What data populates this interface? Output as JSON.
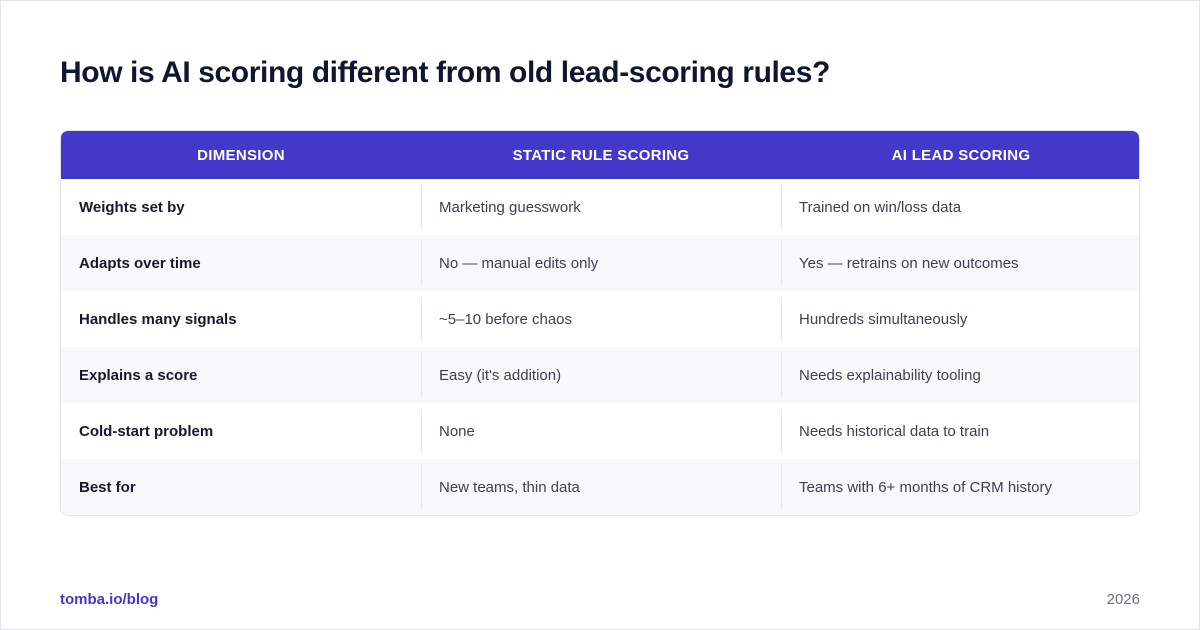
{
  "title": "How is AI scoring different from old lead-scoring rules?",
  "table": {
    "headers": [
      "DIMENSION",
      "STATIC RULE SCORING",
      "AI LEAD SCORING"
    ],
    "rows": [
      [
        "Weights set by",
        "Marketing guesswork",
        "Trained on win/loss data"
      ],
      [
        "Adapts over time",
        "No — manual edits only",
        "Yes — retrains on new outcomes"
      ],
      [
        "Handles many signals",
        "~5–10 before chaos",
        "Hundreds simultaneously"
      ],
      [
        "Explains a score",
        "Easy (it's addition)",
        "Needs explainability tooling"
      ],
      [
        "Cold-start problem",
        "None",
        "Needs historical data to train"
      ],
      [
        "Best for",
        "New teams, thin data",
        "Teams with 6+ months of CRM history"
      ]
    ]
  },
  "footer": {
    "link": "tomba.io/blog",
    "year": "2026"
  },
  "colors": {
    "accent": "#4338ca",
    "title": "#0f1730",
    "row_alt": "#f7f8fa"
  }
}
